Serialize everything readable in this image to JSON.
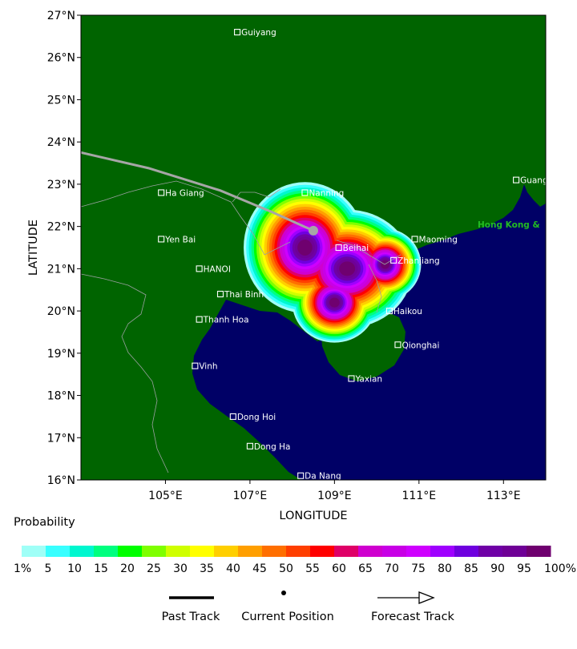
{
  "map": {
    "lat_ticks": [
      "27°N",
      "26°N",
      "25°N",
      "24°N",
      "23°N",
      "22°N",
      "21°N",
      "20°N",
      "19°N",
      "18°N",
      "17°N",
      "16°N"
    ],
    "lon_ticks": [
      "105°E",
      "107°E",
      "109°E",
      "111°E",
      "113°E"
    ],
    "xlabel": "LONGITUDE",
    "ylabel": "LATITUDE",
    "land_color": "#006400",
    "sea_color": "#000066",
    "cities": [
      {
        "name": "Guiyang",
        "lon": 106.7,
        "lat": 26.6
      },
      {
        "name": "Nanning",
        "lon": 108.3,
        "lat": 22.8
      },
      {
        "name": "Ha Giang",
        "lon": 104.9,
        "lat": 22.8
      },
      {
        "name": "Guangzhou",
        "lon": 113.3,
        "lat": 23.1
      },
      {
        "name": "Yen Bai",
        "lon": 104.9,
        "lat": 21.7
      },
      {
        "name": "Beihai",
        "lon": 109.1,
        "lat": 21.5
      },
      {
        "name": "Maoming",
        "lon": 110.9,
        "lat": 21.7
      },
      {
        "name": "HANOI",
        "lon": 105.8,
        "lat": 21.0
      },
      {
        "name": "Zhanjiang",
        "lon": 110.4,
        "lat": 21.2
      },
      {
        "name": "Thai Binh",
        "lon": 106.3,
        "lat": 20.4
      },
      {
        "name": "Haikou",
        "lon": 110.3,
        "lat": 20.0
      },
      {
        "name": "Thanh Hoa",
        "lon": 105.8,
        "lat": 19.8
      },
      {
        "name": "Qionghai",
        "lon": 110.5,
        "lat": 19.2
      },
      {
        "name": "Vinh",
        "lon": 105.7,
        "lat": 18.7
      },
      {
        "name": "Yaxian",
        "lon": 109.4,
        "lat": 18.4
      },
      {
        "name": "Dong Hoi",
        "lon": 106.6,
        "lat": 17.5
      },
      {
        "name": "Dong Ha",
        "lon": 107.0,
        "lat": 16.8
      },
      {
        "name": "Da Nang",
        "lon": 108.2,
        "lat": 16.1
      }
    ],
    "highlight_city": {
      "name": "Hong Kong &",
      "color": "#22bb22"
    },
    "past_track": [
      [
        103.0,
        23.75
      ],
      [
        104.6,
        23.38
      ],
      [
        106.3,
        22.85
      ],
      [
        107.5,
        22.35
      ],
      [
        108.5,
        21.9
      ]
    ],
    "current_position": {
      "lon": 108.5,
      "lat": 21.9
    },
    "probability_lobes": [
      {
        "lon": 108.3,
        "lat": 21.5,
        "rlon": 1.45,
        "rlat": 1.55
      },
      {
        "lon": 109.3,
        "lat": 21.0,
        "rlon": 1.55,
        "rlat": 1.4
      },
      {
        "lon": 110.2,
        "lat": 21.1,
        "rlon": 0.85,
        "rlat": 0.85
      },
      {
        "lon": 109.0,
        "lat": 20.2,
        "rlon": 1.0,
        "rlat": 0.95
      }
    ]
  },
  "legend": {
    "title": "Probability",
    "colors": [
      "#9ffff7",
      "#38ffff",
      "#00f7cf",
      "#00ff7f",
      "#00ff00",
      "#7fff00",
      "#cfff00",
      "#ffff00",
      "#ffcf00",
      "#ff9f00",
      "#ff6f00",
      "#ff3f00",
      "#ff0000",
      "#df0067",
      "#cf00cf",
      "#c800e6",
      "#cf00ff",
      "#9f00ff",
      "#6f00df",
      "#6f00a6",
      "#6f0096",
      "#6f006f"
    ],
    "labels": [
      "1%",
      "5",
      "10",
      "15",
      "20",
      "25",
      "30",
      "35",
      "40",
      "45",
      "50",
      "55",
      "60",
      "65",
      "70",
      "75",
      "80",
      "85",
      "90",
      "95",
      "100%"
    ],
    "track_keys": [
      {
        "label": "Past Track"
      },
      {
        "label": "Current Position"
      },
      {
        "label": "Forecast Track"
      }
    ]
  }
}
